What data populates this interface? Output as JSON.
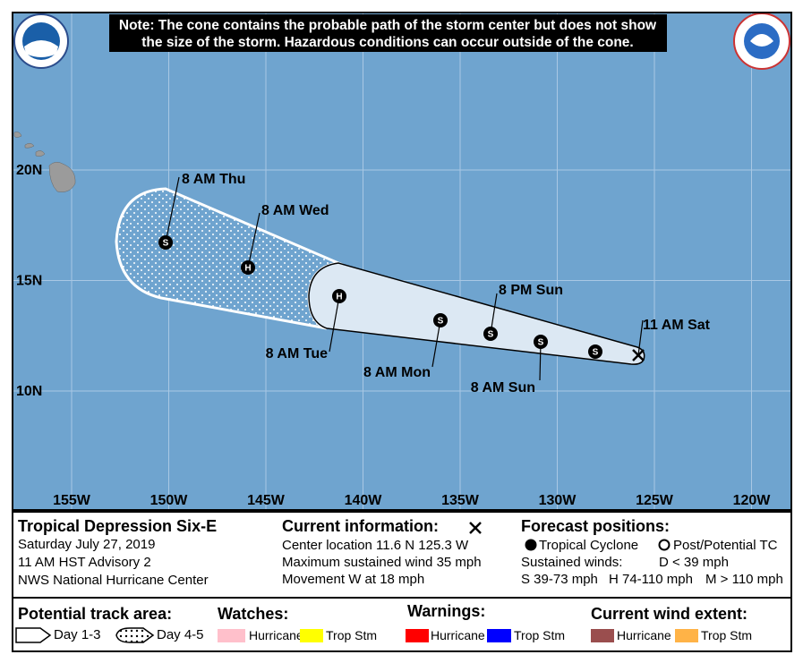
{
  "note": [
    "Note: The cone contains the probable path of the storm center but does not show",
    "the size of the storm. Hazardous conditions can occur outside of the cone."
  ],
  "map": {
    "lon_labels": [
      "155W",
      "150W",
      "145W",
      "140W",
      "135W",
      "130W",
      "125W",
      "120W"
    ],
    "lat_labels": [
      "20N",
      "15N",
      "10N"
    ],
    "track": [
      {
        "time": "11 AM Sat"
      },
      {
        "symbol": "S"
      },
      {
        "symbol": "S",
        "time": "8 AM Sun"
      },
      {
        "symbol": "S",
        "time": "8 PM Sun"
      },
      {
        "symbol": "S",
        "time": "8 AM Mon"
      },
      {
        "symbol": "H",
        "time": "8 AM Tue"
      },
      {
        "symbol": "H",
        "time": "8 AM Wed"
      },
      {
        "symbol": "S",
        "time": "8 AM Thu"
      }
    ]
  },
  "info": {
    "storm": {
      "name": "Tropical Depression Six-E",
      "date": "Saturday July 27, 2019",
      "advisory": "11 AM HST Advisory 2",
      "source": "NWS National Hurricane Center"
    },
    "current": {
      "title": "Current information:",
      "lines": [
        "Center location 11.6 N 125.3 W",
        "Maximum sustained wind 35 mph",
        "Movement W at 18 mph"
      ]
    },
    "forecast": {
      "title": "Forecast positions:",
      "tc": "Tropical Cyclone",
      "ptc": "Post/Potential TC",
      "winds": "Sustained winds:",
      "d": "D < 39 mph",
      "s": "S 39-73 mph",
      "h": "H 74-110 mph",
      "m": "M > 110 mph"
    }
  },
  "legend": {
    "track_area": {
      "title": "Potential track area:",
      "day13": "Day 1-3",
      "day45": "Day 4-5"
    },
    "watches": {
      "title": "Watches:",
      "hurricane": "Hurricane",
      "trop": "Trop Stm"
    },
    "warnings": {
      "title": "Warnings:",
      "hurricane": "Hurricane",
      "trop": "Trop Stm"
    },
    "wind": {
      "title": "Current wind extent:",
      "hurricane": "Hurricane",
      "trop": "Trop Stm"
    }
  }
}
